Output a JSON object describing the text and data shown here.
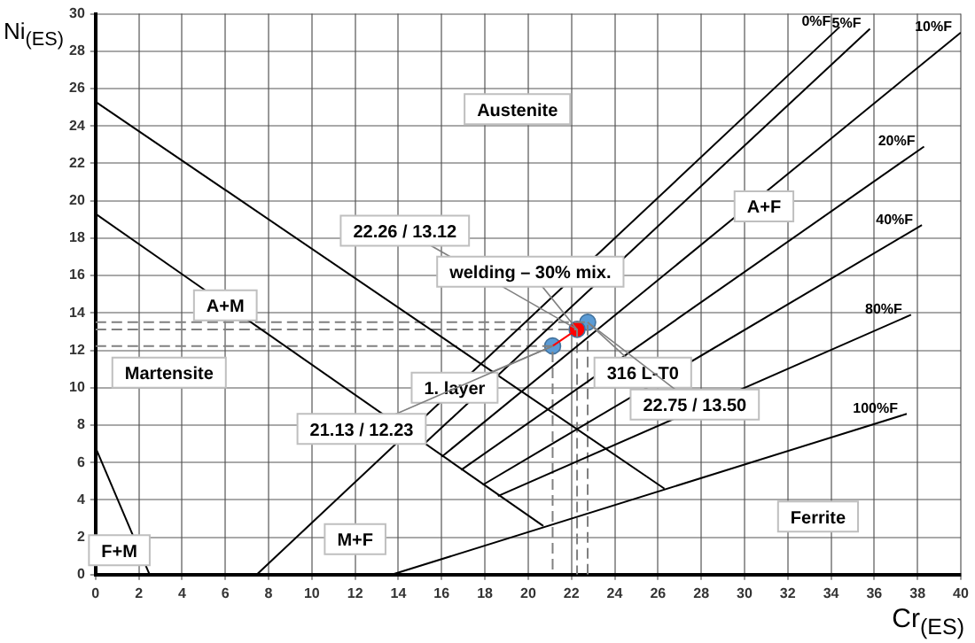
{
  "chart_data": {
    "type": "line",
    "xlabel": "Cr$_{(ES)}$",
    "ylabel": "Ni$_{(ES)}$",
    "xlim": [
      0,
      40
    ],
    "xticks": [
      0,
      2,
      4,
      6,
      8,
      10,
      12,
      14,
      16,
      18,
      20,
      22,
      24,
      26,
      28,
      30,
      32,
      34,
      36,
      38,
      40
    ],
    "ylim": [
      0,
      30
    ],
    "yticks": [
      0,
      2,
      4,
      6,
      8,
      10,
      12,
      14,
      16,
      18,
      20,
      22,
      24,
      26,
      28,
      30
    ],
    "grid": true,
    "legend": false,
    "marker": "none",
    "line_style": "solid",
    "series": [
      {
        "color": "#000000",
        "x": [
          0,
          26.3
        ],
        "values": [
          25.3,
          4.6
        ]
      },
      {
        "color": "#000000",
        "x": [
          0,
          20.7
        ],
        "values": [
          19.3,
          2.6
        ]
      },
      {
        "color": "#000000",
        "x": [
          0,
          2.5
        ],
        "values": [
          6.8,
          0
        ]
      },
      {
        "name": "0%F",
        "color": "#000000",
        "x": [
          7.45,
          34.4
        ],
        "values": [
          0,
          29.3
        ]
      },
      {
        "name": "5%F",
        "color": "#000000",
        "x": [
          15.2,
          35.8
        ],
        "values": [
          7.0,
          29.2
        ]
      },
      {
        "name": "10%F",
        "color": "#000000",
        "x": [
          16.0,
          40
        ],
        "values": [
          6.3,
          29.0
        ]
      },
      {
        "name": "20%F",
        "color": "#000000",
        "x": [
          16.9,
          38.3
        ],
        "values": [
          5.6,
          22.9
        ]
      },
      {
        "name": "40%F",
        "color": "#000000",
        "x": [
          17.9,
          38.2
        ],
        "values": [
          4.8,
          18.7
        ]
      },
      {
        "name": "80%F",
        "color": "#000000",
        "x": [
          18.6,
          37.7
        ],
        "values": [
          4.2,
          13.9
        ]
      },
      {
        "name": "100%F",
        "color": "#000000",
        "x": [
          13.7,
          37.5
        ],
        "values": [
          0,
          8.6
        ]
      },
      {
        "color": "#808080",
        "line_style": "dashed",
        "x": [
          0,
          21.13,
          21.13
        ],
        "values": [
          12.23,
          12.23,
          0
        ]
      },
      {
        "color": "#808080",
        "line_style": "dashed",
        "x": [
          0,
          22.26,
          22.26
        ],
        "values": [
          13.12,
          13.12,
          0
        ]
      },
      {
        "color": "#808080",
        "line_style": "dashed",
        "x": [
          0,
          22.75,
          22.75
        ],
        "values": [
          13.5,
          13.5,
          0
        ]
      },
      {
        "color": "#ff0000",
        "x": [
          21.13,
          22.26
        ],
        "values": [
          12.23,
          13.12
        ]
      },
      {
        "type": "scatter",
        "marker": "circle",
        "x": [
          21.13,
          22.75,
          22.26
        ],
        "values": [
          12.23,
          13.5,
          13.12
        ],
        "colors": [
          "#5b9bd5",
          "#5b9bd5",
          "#ff0000"
        ]
      }
    ],
    "annotations": [
      "Austenite",
      "A+M",
      "A+F",
      "Martensite",
      "F+M",
      "M+F",
      "Ferrite",
      {
        "text": "22.26 / 13.12",
        "x": 22.26,
        "y": 13.12
      },
      {
        "text": "welding – 30% mix.",
        "x": 22.26,
        "y": 13.12
      },
      {
        "text": "1. layer",
        "x": 21.13,
        "y": 12.23
      },
      {
        "text": "21.13 / 12.23",
        "x": 21.13,
        "y": 12.23
      },
      {
        "text": "316 L-T0",
        "x": 22.75,
        "y": 13.5
      },
      {
        "text": "22.75 / 13.50",
        "x": 22.75,
        "y": 13.5
      }
    ]
  }
}
